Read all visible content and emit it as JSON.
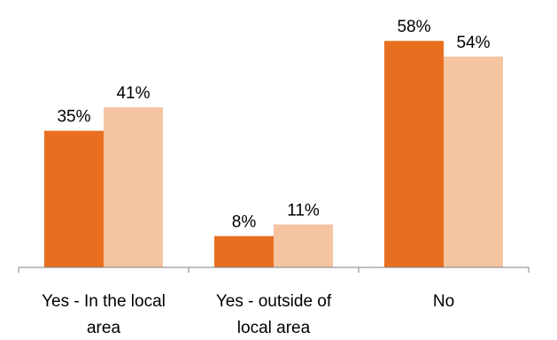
{
  "chart_data": {
    "type": "bar",
    "categories": [
      [
        "Yes - In the local",
        "area"
      ],
      [
        "Yes - outside of",
        "local area"
      ],
      [
        "No"
      ]
    ],
    "series": [
      {
        "values": [
          35,
          8,
          58
        ],
        "labels": [
          "35%",
          "8%",
          "58%"
        ],
        "color": "#E96F20"
      },
      {
        "values": [
          41,
          11,
          54
        ],
        "labels": [
          "41%",
          "11%",
          "54%"
        ],
        "color": "#F5C4A1"
      }
    ],
    "ylim": [
      0,
      65
    ],
    "axis_color": "#808080",
    "grid": false,
    "legend": "none"
  }
}
